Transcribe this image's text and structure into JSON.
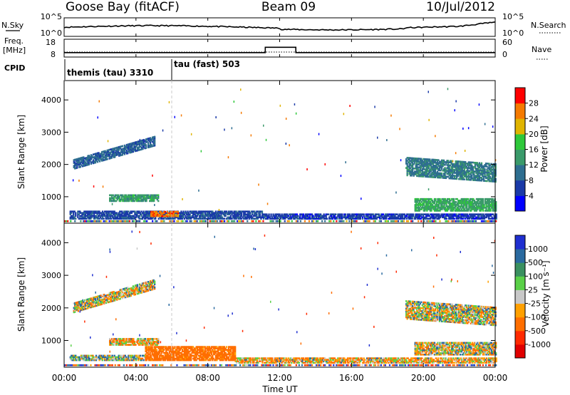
{
  "header": {
    "station": "Goose Bay (fitACF)",
    "beam": "Beam 09",
    "date": "10/Jul/2012"
  },
  "summary": {
    "nsky_label": "N.Sky",
    "nsky_ticks": [
      "10^5",
      "10^0"
    ],
    "nsearch_label": "N.Search",
    "nsearch_ticks": [
      "10^5",
      "10^0"
    ],
    "freq_label_1": "Freq.",
    "freq_label_2": "[MHz]",
    "freq_ticks": [
      "18",
      "8"
    ],
    "nave_label": "Nave",
    "nave_ticks": [
      "60",
      "0"
    ],
    "cpid_label": "CPID",
    "cpid_1": "themis (tau) 3310",
    "cpid_2": "tau (fast) 503"
  },
  "axes": {
    "ylabel": "Slant Range [km]",
    "yticks": [
      "4000",
      "3000",
      "2000",
      "1000"
    ],
    "xlabel": "Time UT",
    "xticks": [
      "00:00",
      "04:00",
      "08:00",
      "12:00",
      "16:00",
      "20:00",
      "00:00"
    ]
  },
  "power_colorbar": {
    "label": "Power [dB]",
    "ticks": [
      "28",
      "24",
      "20",
      "16",
      "12",
      "8",
      "4"
    ],
    "colors": [
      "#0000ff",
      "#1a3aa8",
      "#2e6e90",
      "#3a9a6a",
      "#2ec83a",
      "#e0b400",
      "#f57a00",
      "#ff0000"
    ]
  },
  "velocity_colorbar": {
    "label": "Velocity [m s⁻¹]",
    "ticks": [
      "1000",
      "500",
      "100",
      "25",
      "-25",
      "-100",
      "-500",
      "-1000"
    ],
    "colors": [
      "#1f2fd0",
      "#2a6aa0",
      "#3a9060",
      "#5ad048",
      "#c8c8c8",
      "#ffa000",
      "#ff6e00",
      "#ff2a00",
      "#e00000"
    ]
  },
  "chart_data": [
    {
      "type": "line",
      "title": "Goose Bay (fitACF) Beam 09 10/Jul/2012",
      "series": [
        {
          "name": "N.Sky"
        },
        {
          "name": "N.Search"
        },
        {
          "name": "Freq."
        },
        {
          "name": "Nave"
        }
      ],
      "x_range_hours": [
        0,
        24
      ],
      "freq": {
        "ylim": [
          8,
          18
        ],
        "x_hours": [
          0,
          11.2,
          11.2,
          12.9,
          12.9,
          24
        ],
        "values": [
          10.5,
          10.5,
          13.5,
          13.5,
          10.5,
          10.5
        ]
      },
      "cpid_changes_hours": [
        0,
        5.95
      ]
    },
    {
      "type": "heatmap",
      "title": "Power [dB]",
      "xlabel": "Time UT",
      "ylabel": "Slant Range [km]",
      "xlim_hours": [
        0,
        24
      ],
      "ylim_km": [
        180,
        4600
      ],
      "clim": [
        0,
        30
      ],
      "regions": [
        {
          "t0": 0.5,
          "t1": 5.0,
          "r0": 1850,
          "r1": 2150,
          "slope": 160,
          "value": 9
        },
        {
          "t0": 2.5,
          "t1": 5.2,
          "r0": 850,
          "r1": 1050,
          "slope": 0,
          "value": 14
        },
        {
          "t0": 0.3,
          "t1": 11.0,
          "r0": 300,
          "r1": 560,
          "slope": 0,
          "value": 7
        },
        {
          "t0": 4.8,
          "t1": 6.3,
          "r0": 380,
          "r1": 560,
          "slope": 0,
          "value": 26
        },
        {
          "t0": 11.0,
          "t1": 24.0,
          "r0": 300,
          "r1": 480,
          "slope": 0,
          "value": 6
        },
        {
          "t0": 19.5,
          "t1": 24.0,
          "r0": 550,
          "r1": 950,
          "slope": 0,
          "value": 15
        },
        {
          "t0": 19.0,
          "t1": 24.0,
          "r0": 1650,
          "r1": 2200,
          "slope": -40,
          "value": 11
        }
      ]
    },
    {
      "type": "heatmap",
      "title": "Velocity [m s⁻¹]",
      "xlabel": "Time UT",
      "ylabel": "Slant Range [km]",
      "xlim_hours": [
        0,
        24
      ],
      "ylim_km": [
        180,
        4600
      ],
      "clim": [
        -1000,
        1000
      ],
      "regions": [
        {
          "t0": 0.5,
          "t1": 5.0,
          "r0": 1850,
          "r1": 2150,
          "slope": 160,
          "value": 0
        },
        {
          "t0": 2.5,
          "t1": 5.2,
          "r0": 850,
          "r1": 1050,
          "slope": 0,
          "value": -60
        },
        {
          "t0": 0.3,
          "t1": 4.5,
          "r0": 380,
          "r1": 560,
          "slope": 0,
          "value": 60
        },
        {
          "t0": 4.5,
          "t1": 9.5,
          "r0": 380,
          "r1": 820,
          "slope": 0,
          "value": -250
        },
        {
          "t0": 9.5,
          "t1": 24.0,
          "r0": 300,
          "r1": 480,
          "slope": 0,
          "value": -60
        },
        {
          "t0": 19.5,
          "t1": 24.0,
          "r0": 550,
          "r1": 950,
          "slope": 0,
          "value": 0
        },
        {
          "t0": 19.0,
          "t1": 24.0,
          "r0": 1650,
          "r1": 2200,
          "slope": -40,
          "value": 0
        }
      ]
    }
  ]
}
